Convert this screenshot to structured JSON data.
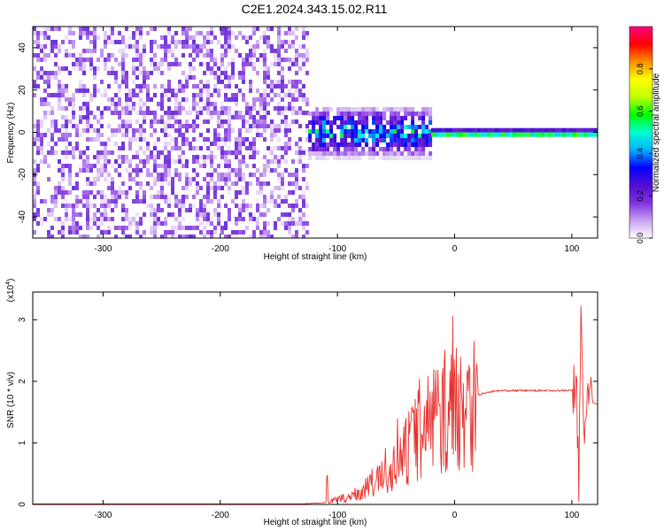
{
  "title": "C2E1.2024.343.15.02.R11",
  "chart_data": [
    {
      "type": "heatmap",
      "xlabel": "Height of straight line (km)",
      "ylabel": "Frequency (Hz)",
      "xlim": [
        -360,
        122
      ],
      "ylim": [
        -50,
        50
      ],
      "xticks": [
        -300,
        -200,
        -100,
        0,
        100
      ],
      "yticks": [
        -40,
        -20,
        0,
        20,
        40
      ],
      "colorbar": {
        "label": "Normalized spectral amplitude",
        "range": [
          0,
          1
        ],
        "ticks": [
          "0.0",
          "0.2",
          "0.4",
          "0.6",
          "0.8"
        ],
        "tick_values": [
          0,
          0.2,
          0.4,
          0.6,
          0.8
        ],
        "colors": [
          "#ffffff",
          "#c8a0f0",
          "#8030e0",
          "#5010d0",
          "#0000ff",
          "#00b0ff",
          "#00ffd0",
          "#00ff00",
          "#c0ff00",
          "#ffff00",
          "#ff9000",
          "#ff0000",
          "#ff0080"
        ]
      },
      "regions": [
        {
          "x_range": [
            -360,
            -125
          ],
          "y_range": [
            -50,
            50
          ],
          "amplitude": 0.1
        },
        {
          "x_range": [
            -125,
            -20
          ],
          "y_range": [
            -12,
            14
          ],
          "amplitude": 0.4
        },
        {
          "x_range": [
            -20,
            122
          ],
          "y_range": [
            -2,
            2
          ],
          "amplitude": 0.55
        }
      ]
    },
    {
      "type": "line",
      "xlabel": "Height of straight line (km)",
      "ylabel": "SNR (10 * v/v)",
      "multiplier": "(x10",
      "multiplier_exp": "4",
      "multiplier_close": ")",
      "xlim": [
        -360,
        122
      ],
      "ylim": [
        0,
        3.45
      ],
      "xticks": [
        -300,
        -200,
        -100,
        0,
        100
      ],
      "yticks": [
        0,
        1,
        2,
        3
      ],
      "series_color": "#e8302c",
      "x": [
        -360,
        -300,
        -200,
        -130,
        -110,
        -100,
        -90,
        -80,
        -70,
        -60,
        -50,
        -40,
        -30,
        -20,
        -10,
        0,
        10,
        20,
        30,
        40,
        60,
        80,
        100,
        104,
        106,
        108,
        110,
        114,
        118,
        122
      ],
      "y": [
        0.01,
        0.01,
        0.01,
        0.01,
        0.03,
        0.08,
        0.12,
        0.2,
        0.35,
        0.45,
        0.6,
        0.9,
        1.2,
        1.4,
        1.5,
        1.6,
        1.7,
        1.78,
        1.83,
        1.85,
        1.85,
        1.85,
        1.85,
        1.9,
        0.2,
        3.3,
        1.0,
        2.0,
        1.65,
        1.63
      ]
    }
  ]
}
